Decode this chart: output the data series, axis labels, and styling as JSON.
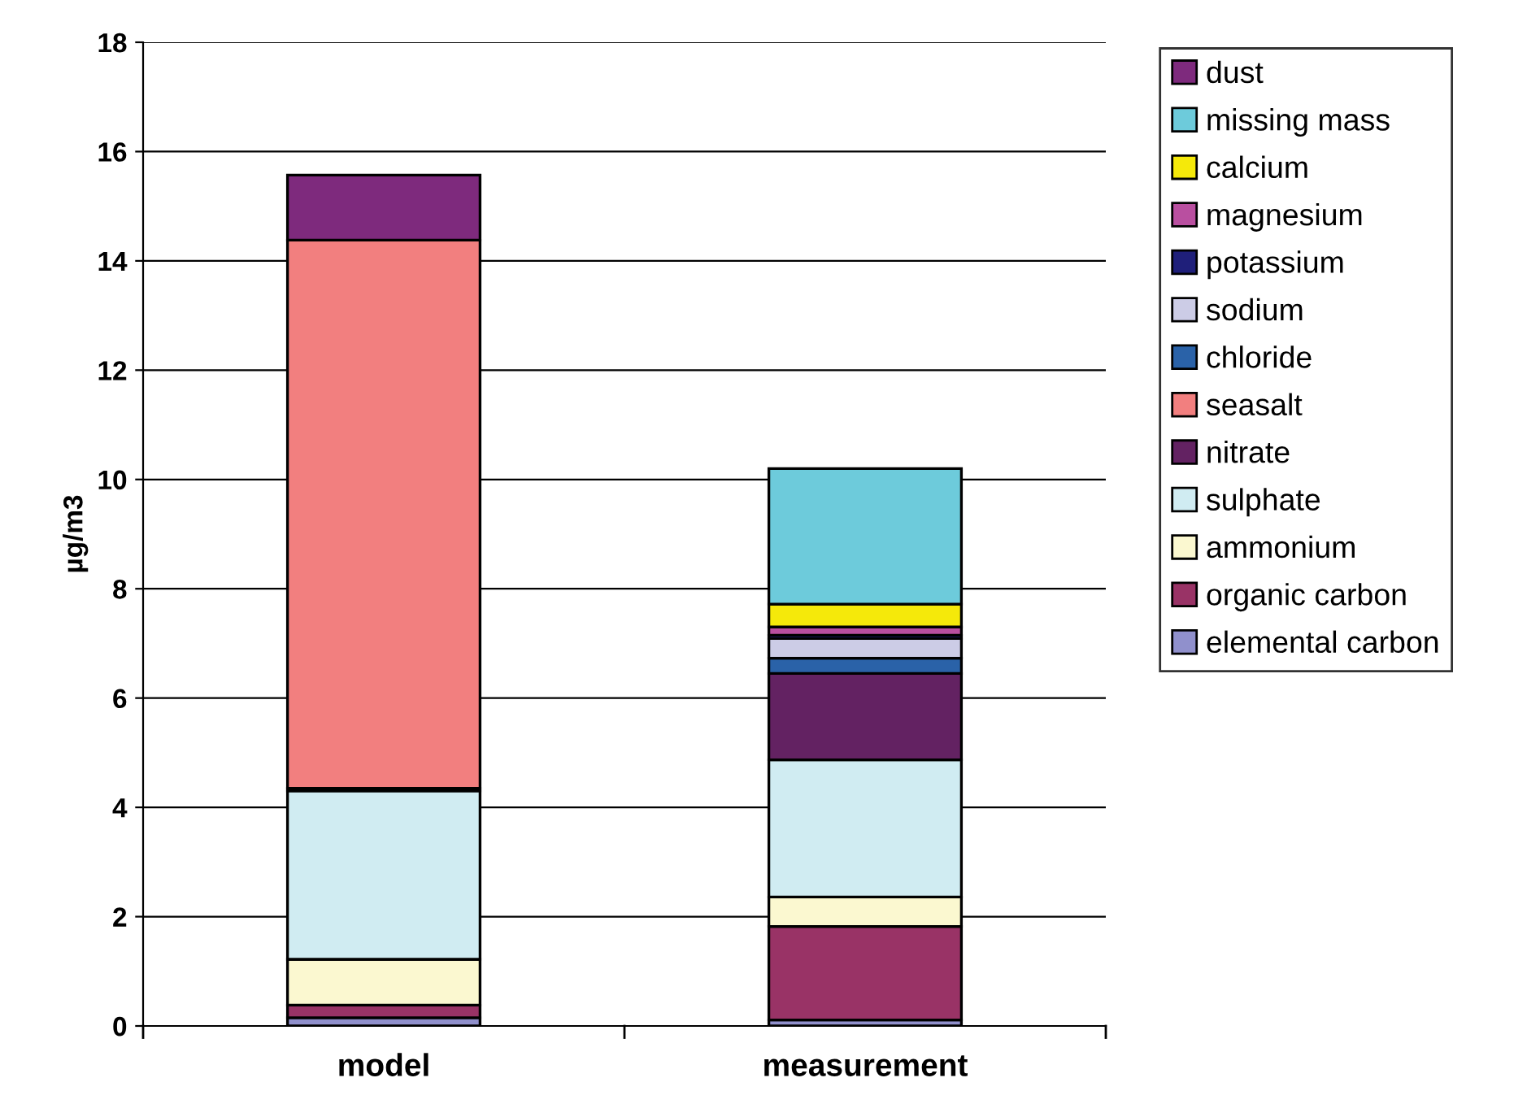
{
  "chart_data": {
    "type": "bar",
    "stacked": true,
    "ylabel": "µg/m3",
    "categories": [
      "model",
      "measurement"
    ],
    "series": [
      {
        "name": "elemental carbon",
        "color": "#9090cc",
        "values": [
          0.15,
          0.11
        ]
      },
      {
        "name": "organic carbon",
        "color": "#993366",
        "values": [
          0.23,
          1.71
        ]
      },
      {
        "name": "ammonium",
        "color": "#fbf8d0",
        "values": [
          0.84,
          0.54
        ]
      },
      {
        "name": "sulphate",
        "color": "#d0ecf2",
        "values": [
          3.08,
          2.51
        ]
      },
      {
        "name": "nitrate",
        "color": "#632262",
        "values": [
          0.05,
          1.58
        ]
      },
      {
        "name": "seasalt",
        "color": "#f27f7f",
        "values": [
          10.03,
          null
        ]
      },
      {
        "name": "chloride",
        "color": "#2a62a8",
        "values": [
          null,
          0.28
        ]
      },
      {
        "name": "sodium",
        "color": "#ccccE6",
        "values": [
          null,
          0.36
        ]
      },
      {
        "name": "potassium",
        "color": "#1f1f7a",
        "values": [
          null,
          0.06
        ]
      },
      {
        "name": "magnesium",
        "color": "#b94fa0",
        "values": [
          null,
          0.15
        ]
      },
      {
        "name": "calcium",
        "color": "#f5e90a",
        "values": [
          null,
          0.42
        ]
      },
      {
        "name": "missing mass",
        "color": "#6dcbdb",
        "values": [
          null,
          2.48
        ]
      },
      {
        "name": "dust",
        "color": "#7e2a7d",
        "values": [
          1.19,
          null
        ]
      }
    ],
    "ylim": [
      0,
      18
    ],
    "yticks": [
      0,
      2,
      4,
      6,
      8,
      10,
      12,
      14,
      16,
      18
    ],
    "grid": "y",
    "legend": "right"
  }
}
